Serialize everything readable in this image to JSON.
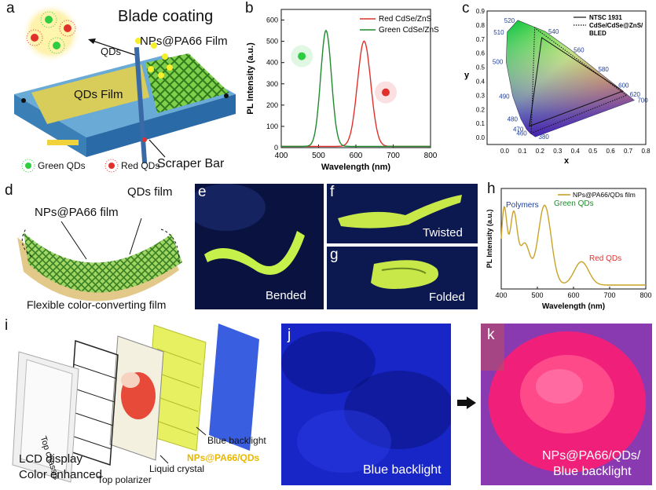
{
  "panel_a": {
    "label": "a",
    "title": "Blade coating",
    "qds_label": "QDs",
    "nps_film_label": "NPs@PA66 Film",
    "qds_film_label": "QDs Film",
    "scraper_label": "Scraper Bar",
    "legend_green": "Green QDs",
    "legend_red": "Red QDs"
  },
  "panel_d": {
    "label": "d",
    "nps_label": "NPs@PA66 film",
    "qds_label": "QDs film",
    "caption": "Flexible color-converting film"
  },
  "panel_e": {
    "label": "e",
    "caption": "Bended"
  },
  "panel_f": {
    "label": "f",
    "caption": "Twisted"
  },
  "panel_g": {
    "label": "g",
    "caption": "Folded"
  },
  "panel_i": {
    "label": "i",
    "top_chassis": "Top chassis",
    "lcd_line1": "LCD display",
    "lcd_line2": "Color enhanced",
    "top_polarizer": "Top polarizer",
    "liquid_crystal": "Liquid crystal",
    "nps_qds": "NPs@PA66/QDs",
    "blue_backlight": "Blue backlight"
  },
  "panel_j": {
    "label": "j",
    "caption": "Blue backlight"
  },
  "panel_k": {
    "label": "k",
    "caption_line1": "NPs@PA66/QDs/",
    "caption_line2": "Blue backlight"
  },
  "colors": {
    "red": "#e0302c",
    "green": "#1f8a2e",
    "gold": "#c9a227",
    "blue_text": "#1f3f9e"
  },
  "chart_data": [
    {
      "id": "b",
      "label": "b",
      "type": "line",
      "xlabel": "Wavelength (nm)",
      "ylabel": "PL Intensity (a.u.)",
      "xlim": [
        400,
        800
      ],
      "ylim": [
        0,
        650
      ],
      "xticks": [
        400,
        500,
        600,
        700,
        800
      ],
      "yticks": [
        0,
        100,
        200,
        300,
        400,
        500,
        600
      ],
      "legend": "top-right",
      "series": [
        {
          "name": "Red CdSe/ZnS",
          "color": "#e0302c",
          "peak": 622,
          "fwhm": 42,
          "amplitude": 495
        },
        {
          "name": "Green CdSe/ZnS",
          "color": "#1f8a2e",
          "peak": 520,
          "fwhm": 34,
          "amplitude": 545
        }
      ]
    },
    {
      "id": "c",
      "label": "c",
      "type": "scatter",
      "xlabel": "x",
      "ylabel": "y",
      "xlim": [
        -0.1,
        0.8
      ],
      "ylim": [
        -0.05,
        0.9
      ],
      "xticks": [
        "0.0",
        "0.1",
        "0.2",
        "0.3",
        "0.4",
        "0.5",
        "0.6",
        "0.7",
        "0.8"
      ],
      "yticks": [
        "0.0",
        "0.1",
        "0.2",
        "0.3",
        "0.4",
        "0.5",
        "0.6",
        "0.7",
        "0.8",
        "0.9"
      ],
      "legend": [
        {
          "label": "NTSC 1931",
          "style": "solid"
        },
        {
          "label": "CdSe/CdSe@ZnS/",
          "style": "dotted"
        },
        {
          "label": "BLED",
          "style": "none"
        }
      ],
      "locus": [
        {
          "nm": "380",
          "x": 0.1741,
          "y": 0.005
        },
        {
          "nm": "460",
          "x": 0.144,
          "y": 0.0297
        },
        {
          "nm": "470",
          "x": 0.1241,
          "y": 0.0578
        },
        {
          "nm": "480",
          "x": 0.0913,
          "y": 0.1327
        },
        {
          "nm": "490",
          "x": 0.0454,
          "y": 0.295
        },
        {
          "nm": "500",
          "x": 0.0082,
          "y": 0.5384
        },
        {
          "nm": "510",
          "x": 0.0139,
          "y": 0.7502
        },
        {
          "nm": "520",
          "x": 0.0743,
          "y": 0.8338
        },
        {
          "nm": "540",
          "x": 0.2296,
          "y": 0.7543
        },
        {
          "nm": "560",
          "x": 0.3731,
          "y": 0.6245
        },
        {
          "nm": "580",
          "x": 0.5125,
          "y": 0.4866
        },
        {
          "nm": "600",
          "x": 0.627,
          "y": 0.3725
        },
        {
          "nm": "620",
          "x": 0.6915,
          "y": 0.3083
        },
        {
          "nm": "700",
          "x": 0.7347,
          "y": 0.2653
        }
      ],
      "ntsc": [
        [
          0.67,
          0.33
        ],
        [
          0.21,
          0.71
        ],
        [
          0.14,
          0.08
        ]
      ],
      "device": [
        [
          0.69,
          0.3
        ],
        [
          0.17,
          0.78
        ],
        [
          0.15,
          0.03
        ]
      ]
    },
    {
      "id": "h",
      "label": "h",
      "type": "line",
      "xlabel": "Wavelength (nm)",
      "ylabel": "PL Intensity (a.u.)",
      "xlim": [
        400,
        800
      ],
      "xticks": [
        400,
        500,
        600,
        700,
        800
      ],
      "legend": "top-right",
      "series": [
        {
          "name": "NPs@PA66/QDs film",
          "color": "#c9a227"
        }
      ],
      "annotations": [
        {
          "text": "Polymers",
          "color": "#1f3f9e"
        },
        {
          "text": "Green QDs",
          "color": "#1f8a2e"
        },
        {
          "text": "Red QDs",
          "color": "#e0302c"
        }
      ]
    }
  ]
}
